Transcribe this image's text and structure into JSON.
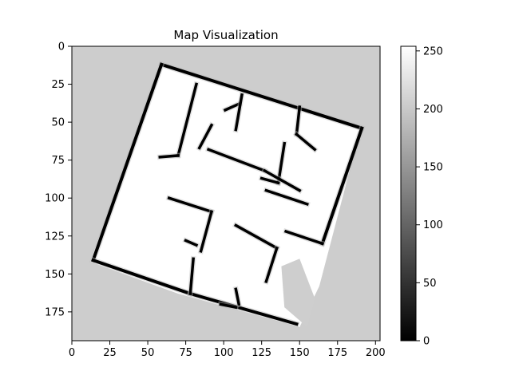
{
  "chart_data": {
    "type": "heatmap",
    "title": "Map Visualization",
    "xlabel": "",
    "ylabel": "",
    "xlim": [
      0,
      203
    ],
    "ylim": [
      194,
      0
    ],
    "x_ticks": [
      0,
      25,
      50,
      75,
      100,
      125,
      150,
      175,
      200
    ],
    "y_ticks": [
      0,
      25,
      50,
      75,
      100,
      125,
      150,
      175
    ],
    "colormap": "gray",
    "value_range": [
      0,
      254
    ],
    "colorbar_ticks": [
      0,
      50,
      100,
      150,
      200,
      250
    ],
    "value_levels": {
      "unknown": 205,
      "free": 254,
      "occupied": 0
    },
    "occupancy_grid": {
      "free_region_outline": [
        [
          60,
          12
        ],
        [
          190,
          55
        ],
        [
          163,
          158
        ],
        [
          150,
          185
        ],
        [
          70,
          163
        ],
        [
          12,
          142
        ]
      ],
      "outer_walls": [
        [
          [
            59,
            12
          ],
          [
            191,
            54
          ]
        ],
        [
          [
            191,
            54
          ],
          [
            165,
            130
          ]
        ],
        [
          [
            59,
            12
          ],
          [
            14,
            141
          ]
        ],
        [
          [
            14,
            141
          ],
          [
            78,
            163
          ]
        ],
        [
          [
            78,
            163
          ],
          [
            148,
            183
          ]
        ]
      ],
      "inner_walls": [
        [
          [
            82,
            25
          ],
          [
            70,
            72
          ]
        ],
        [
          [
            70,
            72
          ],
          [
            58,
            73
          ]
        ],
        [
          [
            92,
            52
          ],
          [
            84,
            67
          ]
        ],
        [
          [
            101,
            42
          ],
          [
            110,
            38
          ]
        ],
        [
          [
            112,
            32
          ],
          [
            108,
            55
          ]
        ],
        [
          [
            80,
            140
          ],
          [
            78,
            163
          ]
        ],
        [
          [
            82,
            131
          ],
          [
            75,
            128
          ]
        ],
        [
          [
            64,
            100
          ],
          [
            92,
            109
          ]
        ],
        [
          [
            92,
            109
          ],
          [
            85,
            135
          ]
        ],
        [
          [
            150,
            40
          ],
          [
            148,
            58
          ]
        ],
        [
          [
            148,
            58
          ],
          [
            160,
            68
          ]
        ],
        [
          [
            140,
            64
          ],
          [
            136,
            90
          ]
        ],
        [
          [
            136,
            90
          ],
          [
            125,
            87
          ]
        ],
        [
          [
            90,
            68
          ],
          [
            127,
            82
          ]
        ],
        [
          [
            127,
            82
          ],
          [
            150,
            95
          ]
        ],
        [
          [
            128,
            95
          ],
          [
            155,
            104
          ]
        ],
        [
          [
            108,
            118
          ],
          [
            135,
            133
          ]
        ],
        [
          [
            135,
            133
          ],
          [
            128,
            155
          ]
        ],
        [
          [
            141,
            122
          ],
          [
            165,
            130
          ]
        ],
        [
          [
            108,
            160
          ],
          [
            110,
            170
          ]
        ],
        [
          [
            98,
            170
          ],
          [
            108,
            172
          ]
        ]
      ],
      "unknown_patches": [
        [
          [
            138,
            145
          ],
          [
            140,
            172
          ],
          [
            155,
            185
          ],
          [
            160,
            166
          ],
          [
            150,
            140
          ]
        ]
      ]
    }
  }
}
